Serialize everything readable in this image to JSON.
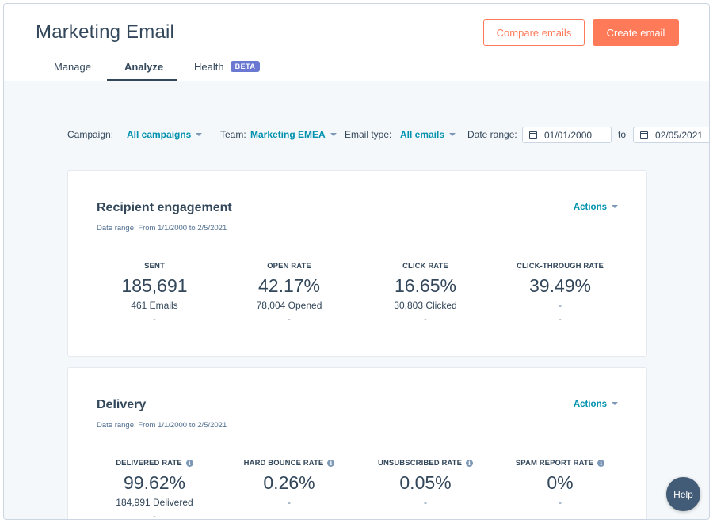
{
  "header": {
    "title": "Marketing Email",
    "compare_label": "Compare emails",
    "create_label": "Create email"
  },
  "tabs": [
    {
      "label": "Manage"
    },
    {
      "label": "Analyze",
      "active": true
    },
    {
      "label": "Health",
      "badge": "BETA"
    }
  ],
  "filters": {
    "campaign_label": "Campaign:",
    "campaign_value": "All campaigns",
    "team_label": "Team:",
    "team_value": "Marketing EMEA",
    "email_type_label": "Email type:",
    "email_type_value": "All emails",
    "date_range_label": "Date range:",
    "date_from": "01/01/2000",
    "to_label": "to",
    "date_to": "02/05/2021"
  },
  "engagement": {
    "title": "Recipient engagement",
    "date_range": "Date range: From 1/1/2000 to 2/5/2021",
    "actions_label": "Actions",
    "metrics": [
      {
        "label": "SENT",
        "value": "185,691",
        "sub": "461 Emails",
        "dash": "-"
      },
      {
        "label": "OPEN RATE",
        "value": "42.17%",
        "sub": "78,004 Opened",
        "dash": "-"
      },
      {
        "label": "CLICK RATE",
        "value": "16.65%",
        "sub": "30,803 Clicked",
        "dash": "-"
      },
      {
        "label": "CLICK-THROUGH RATE",
        "value": "39.49%",
        "sub": "-",
        "dash": "-"
      }
    ]
  },
  "delivery": {
    "title": "Delivery",
    "date_range": "Date range: From 1/1/2000 to 2/5/2021",
    "actions_label": "Actions",
    "metrics": [
      {
        "label": "DELIVERED RATE",
        "value": "99.62%",
        "sub": "184,991 Delivered",
        "dash": "-"
      },
      {
        "label": "HARD BOUNCE RATE",
        "value": "0.26%",
        "sub": "-"
      },
      {
        "label": "UNSUBSCRIBED RATE",
        "value": "0.05%",
        "sub": "-"
      },
      {
        "label": "SPAM REPORT RATE",
        "value": "0%",
        "sub": "-"
      }
    ]
  },
  "help_label": "Help",
  "colors": {
    "accent": "#ff7a59",
    "link": "#0091ae",
    "text": "#33475b",
    "badge": "#6a78d1",
    "help": "#425b76"
  },
  "icons": [
    "calendar-icon",
    "info-icon",
    "caret-down-icon"
  ]
}
